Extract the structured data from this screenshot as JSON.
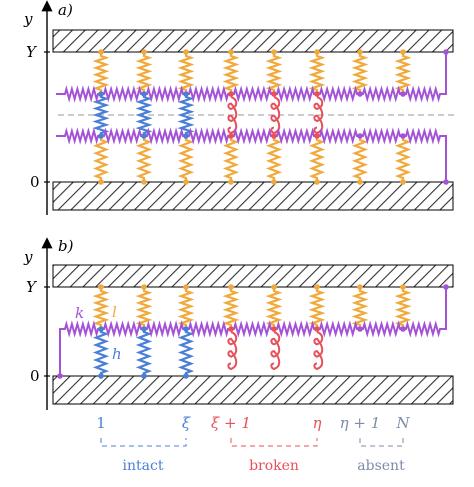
{
  "panel_a": {
    "label": "a)",
    "y_axis": "y",
    "tick_Y": "Y",
    "tick_0": "0"
  },
  "panel_b": {
    "label": "b)",
    "y_axis": "y",
    "tick_Y": "Y",
    "tick_0": "0",
    "spring_labels": {
      "k": "k",
      "l": "l",
      "h": "h"
    }
  },
  "indices": {
    "one": "1",
    "xi": "ξ",
    "xi_plus_1": "ξ + 1",
    "eta": "η",
    "eta_plus_1": "η + 1",
    "N": "N"
  },
  "regions": {
    "intact": "intact",
    "broken": "broken",
    "absent": "absent"
  },
  "colors": {
    "k_spring": "#a452d6",
    "l_spring": "#f2a93b",
    "h_intact": "#4a7fd8",
    "h_broken": "#e8505b",
    "absent": "#7d8ca8",
    "hatch": "#333333"
  }
}
